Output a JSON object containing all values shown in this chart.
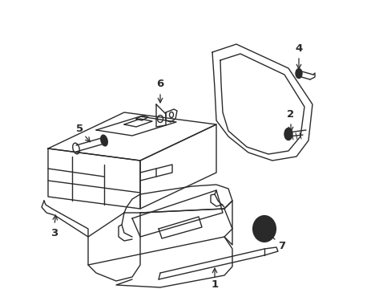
{
  "background_color": "#ffffff",
  "line_color": "#2a2a2a",
  "line_width": 1.0,
  "figsize": [
    4.89,
    3.6
  ],
  "dpi": 100
}
